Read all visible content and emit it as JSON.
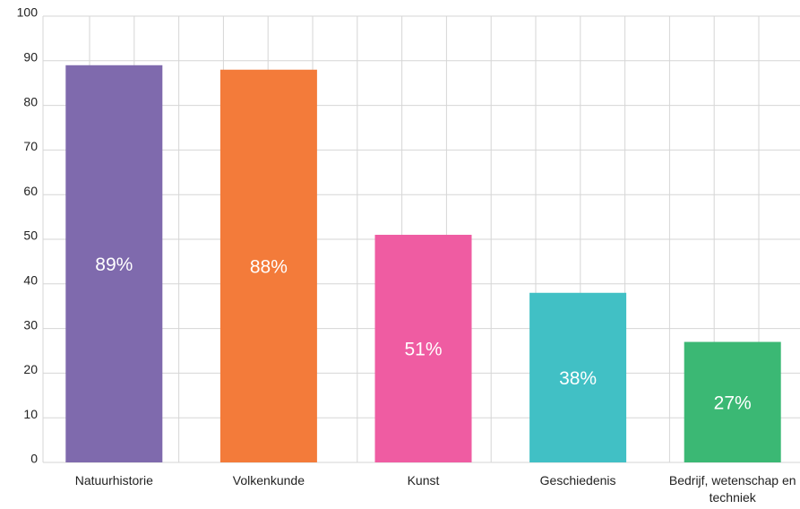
{
  "chart_data": {
    "type": "bar",
    "categories": [
      "Natuurhistorie",
      "Volkenkunde",
      "Kunst",
      "Geschiedenis",
      "Bedrijf, wetenschap en techniek"
    ],
    "values": [
      89,
      88,
      51,
      38,
      27
    ],
    "value_labels": [
      "89%",
      "88%",
      "51%",
      "38%",
      "27%"
    ],
    "colors": [
      "#7f6aad",
      "#f37b3a",
      "#ef5ca2",
      "#41c0c5",
      "#3bb874"
    ],
    "ylim": [
      0,
      100
    ],
    "yticks": [
      0,
      10,
      20,
      30,
      40,
      50,
      60,
      70,
      80,
      90,
      100
    ],
    "grid": true
  }
}
